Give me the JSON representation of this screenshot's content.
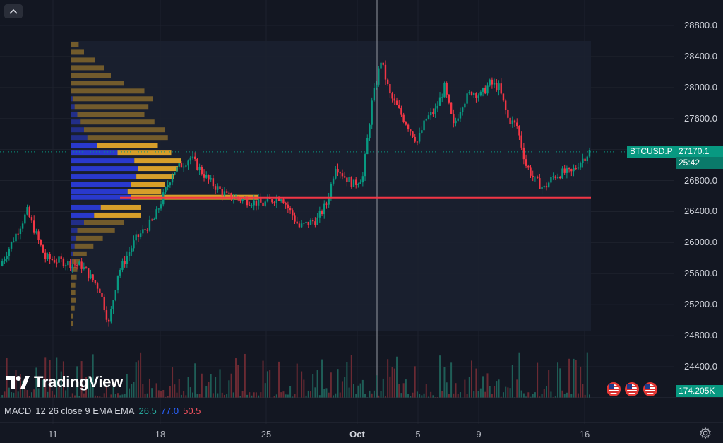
{
  "ui": {
    "watermark": "TradingView",
    "macd_legend": {
      "label": "MACD",
      "params": "12 26 close 9 EMA EMA",
      "macd": "26.5",
      "signal": "77.0",
      "hist": "50.5"
    },
    "symbol_tag": "BTCUSD.P",
    "last_price": "27170.1",
    "countdown": "25:42",
    "volume_tag": "174.205K",
    "icons": [
      "chevron-up-icon",
      "tradingview-logo-icon",
      "us-flag-icon",
      "settings-icon"
    ],
    "colors": {
      "bg": "#131722",
      "up": "#089981",
      "down": "#f23645",
      "poc_line": "#f23645",
      "vp_up": "#2a3bd6",
      "vp_down": "#e0a52a"
    }
  },
  "chart_data": {
    "type": "candlestick",
    "title": "",
    "y_axis": {
      "min": 24200,
      "max": 29000,
      "ticks": [
        "28800.0",
        "28400.0",
        "28000.0",
        "27600.0",
        "27200.0",
        "26800.0",
        "26400.0",
        "26000.0",
        "25600.0",
        "25200.0",
        "24800.0",
        "24400.0"
      ]
    },
    "x_axis": {
      "ticks": [
        "11",
        "18",
        "25",
        "Oct",
        "5",
        "9",
        "16"
      ]
    },
    "price_path": [
      [
        0,
        25700
      ],
      [
        6,
        26400
      ],
      [
        10,
        25800
      ],
      [
        14,
        25750
      ],
      [
        18,
        25700
      ],
      [
        22,
        25400
      ],
      [
        24,
        24950
      ],
      [
        26,
        25600
      ],
      [
        30,
        26050
      ],
      [
        34,
        26300
      ],
      [
        38,
        26900
      ],
      [
        42,
        27100
      ],
      [
        46,
        26800
      ],
      [
        50,
        26600
      ],
      [
        54,
        26550
      ],
      [
        58,
        26500
      ],
      [
        62,
        26600
      ],
      [
        66,
        26200
      ],
      [
        70,
        26300
      ],
      [
        72,
        26500
      ],
      [
        74,
        27000
      ],
      [
        76,
        26850
      ],
      [
        78,
        26750
      ],
      [
        80,
        26850
      ],
      [
        82,
        27800
      ],
      [
        84,
        28350
      ],
      [
        86,
        27900
      ],
      [
        88,
        27700
      ],
      [
        90,
        27500
      ],
      [
        92,
        27300
      ],
      [
        94,
        27600
      ],
      [
        96,
        27700
      ],
      [
        98,
        28000
      ],
      [
        100,
        27500
      ],
      [
        102,
        27800
      ],
      [
        104,
        27950
      ],
      [
        106,
        27900
      ],
      [
        108,
        28050
      ],
      [
        110,
        28000
      ],
      [
        112,
        27600
      ],
      [
        114,
        27500
      ],
      [
        116,
        27000
      ],
      [
        118,
        26800
      ],
      [
        120,
        26700
      ],
      [
        122,
        26850
      ],
      [
        124,
        26900
      ],
      [
        126,
        26900
      ],
      [
        128,
        27050
      ],
      [
        130,
        27170
      ]
    ],
    "poc_price": 26580,
    "current_price": 27170.1,
    "volume_profile": [
      [
        28550,
        0,
        6
      ],
      [
        28450,
        0,
        10
      ],
      [
        28350,
        0,
        18
      ],
      [
        28250,
        0,
        25
      ],
      [
        28150,
        0,
        30
      ],
      [
        28050,
        0,
        40
      ],
      [
        27950,
        0,
        55
      ],
      [
        27850,
        3,
        60
      ],
      [
        27750,
        6,
        55
      ],
      [
        27650,
        10,
        50
      ],
      [
        27550,
        15,
        55
      ],
      [
        27450,
        20,
        60
      ],
      [
        27350,
        25,
        60
      ],
      [
        27250,
        40,
        45
      ],
      [
        27150,
        70,
        40
      ],
      [
        27050,
        95,
        35
      ],
      [
        26950,
        100,
        30
      ],
      [
        26850,
        98,
        28
      ],
      [
        26750,
        90,
        25
      ],
      [
        26650,
        85,
        25
      ],
      [
        26580,
        90,
        95
      ],
      [
        26450,
        45,
        30
      ],
      [
        26350,
        35,
        35
      ],
      [
        26250,
        20,
        30
      ],
      [
        26150,
        10,
        28
      ],
      [
        26050,
        8,
        20
      ],
      [
        25950,
        6,
        14
      ],
      [
        25850,
        4,
        10
      ],
      [
        25750,
        2,
        6
      ],
      [
        25650,
        2,
        4
      ],
      [
        25550,
        1,
        4
      ],
      [
        25450,
        1,
        3
      ],
      [
        25350,
        1,
        3
      ],
      [
        25250,
        0,
        4
      ],
      [
        25150,
        0,
        3
      ],
      [
        25050,
        0,
        2
      ],
      [
        24950,
        0,
        2
      ]
    ]
  }
}
